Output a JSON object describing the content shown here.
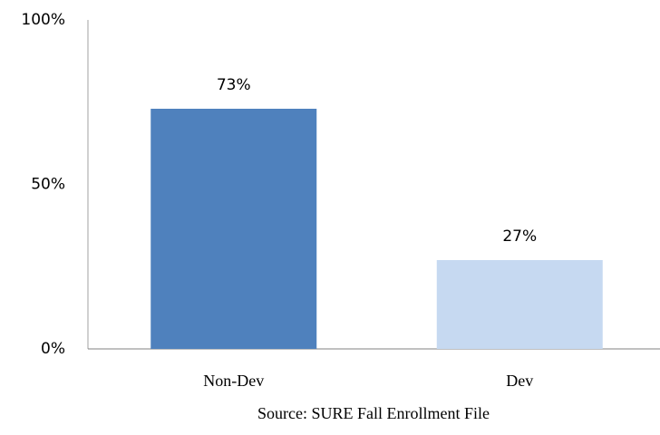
{
  "chart_data": {
    "type": "bar",
    "categories": [
      "Non-Dev",
      "Dev"
    ],
    "values": [
      73,
      27
    ],
    "value_labels": [
      "73%",
      "27%"
    ],
    "colors": [
      "#4f81bd",
      "#c6d9f1"
    ],
    "ylim": [
      0,
      100
    ],
    "yticks": [
      {
        "value": 0,
        "label": "0%"
      },
      {
        "value": 50,
        "label": "50%"
      },
      {
        "value": 100,
        "label": "100%"
      }
    ],
    "source": "Source: SURE Fall Enrollment File"
  }
}
